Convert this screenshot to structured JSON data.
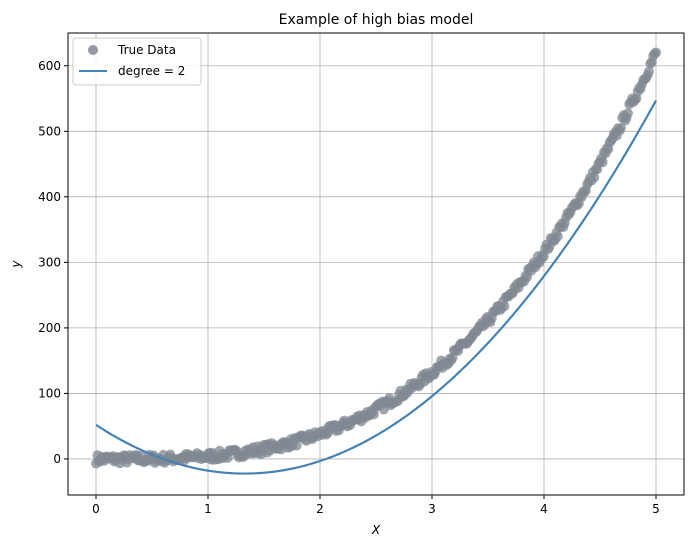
{
  "chart_data": {
    "type": "scatter",
    "title": "Example of high bias model",
    "xlabel": "X",
    "ylabel": "y",
    "xlim": [
      -0.25,
      5.25
    ],
    "ylim": [
      -55,
      650
    ],
    "xticks": [
      0,
      1,
      2,
      3,
      4,
      5
    ],
    "yticks": [
      0,
      100,
      200,
      300,
      400,
      500,
      600
    ],
    "grid": true,
    "legend_position": "top-left",
    "series": [
      {
        "name": "True Data",
        "kind": "scatter",
        "color": "#808891",
        "function": "5 * x^3 - x, plus small noise",
        "x_range": [
          0,
          5
        ],
        "point_count": 400
      },
      {
        "name": "degree = 2",
        "kind": "line",
        "color": "#4682b4",
        "coefficients": {
          "a": 42.2,
          "b": -112,
          "c": 52
        },
        "x_range": [
          0,
          5
        ]
      }
    ]
  }
}
